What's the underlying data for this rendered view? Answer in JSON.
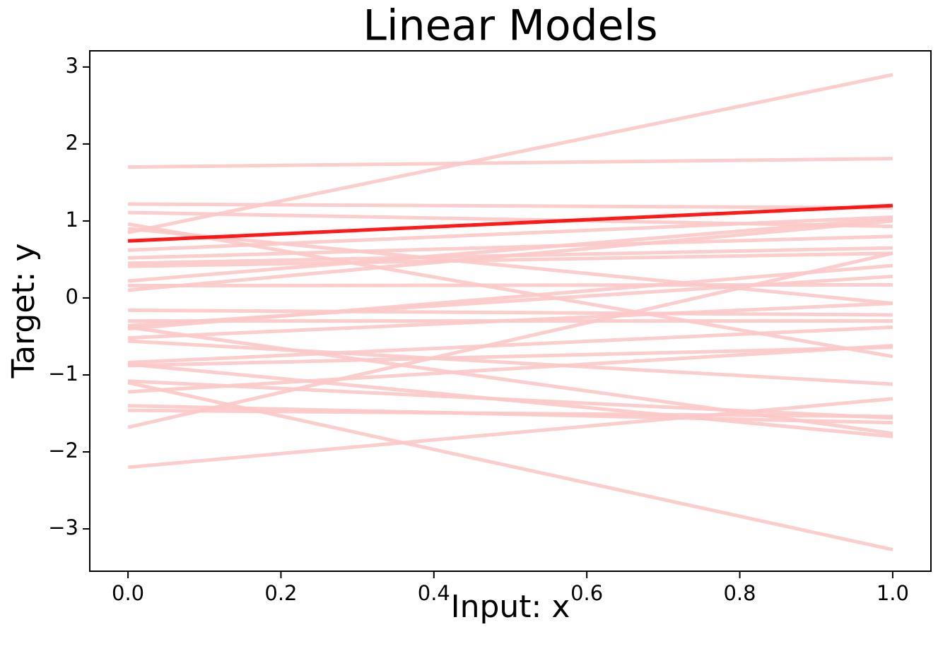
{
  "chart_data": {
    "type": "line",
    "title": "Linear Models",
    "x_label": "Input: x",
    "y_label": "Target: y",
    "x": [
      0,
      1
    ],
    "series": [
      {
        "color": "#fcc8c8",
        "values": [
          0.85,
          2.9
        ]
      },
      {
        "color": "#fcc8c8",
        "values": [
          1.7,
          1.81
        ]
      },
      {
        "color": "#fcc8c8",
        "values": [
          1.22,
          1.17
        ]
      },
      {
        "color": "#fcc8c8",
        "values": [
          1.11,
          0.93
        ]
      },
      {
        "color": "#fcc8c8",
        "values": [
          0.96,
          -0.76
        ]
      },
      {
        "color": "#fcc8c8",
        "values": [
          0.9,
          -0.07
        ]
      },
      {
        "color": "#fcc8c8",
        "values": [
          0.62,
          1.05
        ]
      },
      {
        "color": "#fcc8c8",
        "values": [
          0.52,
          0.8
        ]
      },
      {
        "color": "#fcc8c8",
        "values": [
          0.45,
          0.65
        ]
      },
      {
        "color": "#fcc8c8",
        "values": [
          0.41,
          0.58
        ]
      },
      {
        "color": "#fcc8c8",
        "values": [
          0.22,
          1.03
        ]
      },
      {
        "color": "#fcc8c8",
        "values": [
          0.16,
          0.17
        ]
      },
      {
        "color": "#fcc8c8",
        "values": [
          0.1,
          1.0
        ]
      },
      {
        "color": "#fcc8c8",
        "values": [
          -0.16,
          -0.22
        ]
      },
      {
        "color": "#fcc8c8",
        "values": [
          -0.3,
          -0.3
        ]
      },
      {
        "color": "#fcc8c8",
        "values": [
          -0.36,
          0.28
        ]
      },
      {
        "color": "#fcc8c8",
        "values": [
          -0.38,
          -1.76
        ]
      },
      {
        "color": "#fcc8c8",
        "values": [
          -0.4,
          0.42
        ]
      },
      {
        "color": "#fcc8c8",
        "values": [
          -0.52,
          -0.07
        ]
      },
      {
        "color": "#fcc8c8",
        "values": [
          -0.56,
          -1.12
        ]
      },
      {
        "color": "#fcc8c8",
        "values": [
          -0.84,
          -0.38
        ]
      },
      {
        "color": "#fcc8c8",
        "values": [
          -0.86,
          -1.8
        ]
      },
      {
        "color": "#fcc8c8",
        "values": [
          -0.88,
          -0.64
        ]
      },
      {
        "color": "#fcc8c8",
        "values": [
          -1.08,
          -1.56
        ]
      },
      {
        "color": "#fcc8c8",
        "values": [
          -1.1,
          -3.27
        ]
      },
      {
        "color": "#fcc8c8",
        "values": [
          -1.22,
          -0.62
        ]
      },
      {
        "color": "#fcc8c8",
        "values": [
          -1.4,
          -1.62
        ]
      },
      {
        "color": "#fcc8c8",
        "values": [
          -1.46,
          -1.54
        ]
      },
      {
        "color": "#fcc8c8",
        "values": [
          -1.68,
          0.58
        ]
      },
      {
        "color": "#fcc8c8",
        "values": [
          -2.2,
          -1.31
        ]
      },
      {
        "color": "#ff0000",
        "values": [
          0.74,
          1.2
        ]
      }
    ],
    "xlim": [
      -0.05,
      1.05
    ],
    "xticks": [
      {
        "value": 0,
        "label": "0.0"
      },
      0.2,
      0.4,
      0.6,
      0.8,
      {
        "value": 1,
        "label": "1.0"
      }
    ],
    "ylim": [
      -3.55,
      3.21
    ],
    "yticks": [
      {
        "value": -3,
        "label": "−3"
      },
      {
        "value": -2,
        "label": "−2"
      },
      {
        "value": -1,
        "label": "−1"
      },
      0,
      1,
      2,
      3
    ],
    "grid": false
  }
}
